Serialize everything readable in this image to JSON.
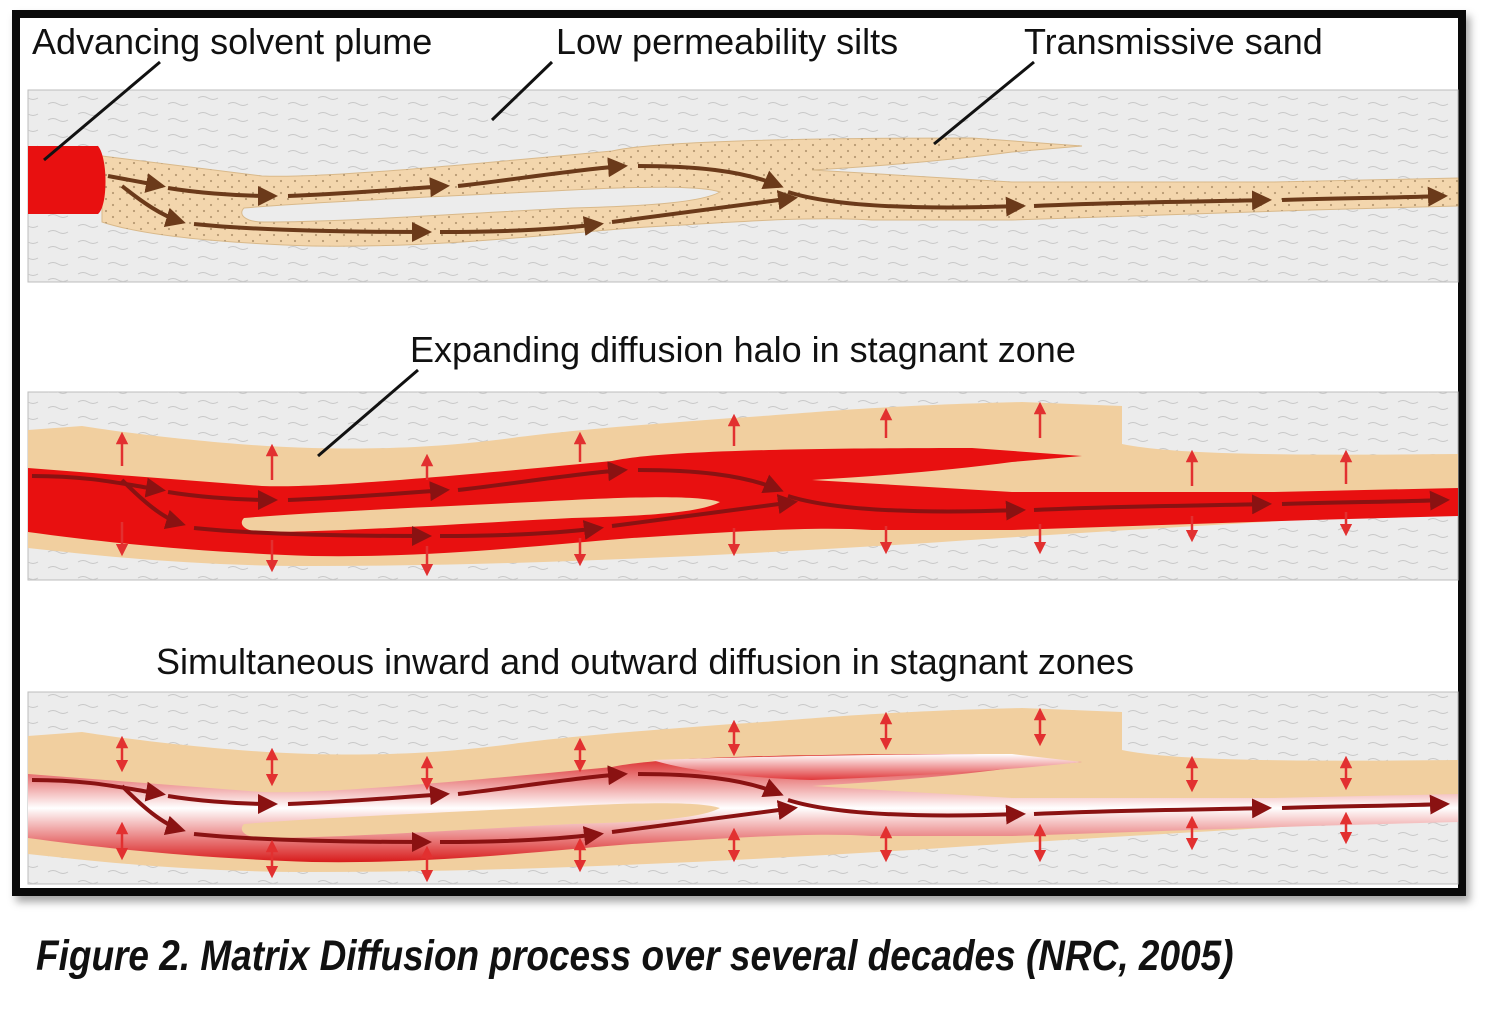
{
  "panels": {
    "top": {
      "labels": {
        "plume": "Advancing solvent plume",
        "silts": "Low permeability silts",
        "sand": "Transmissive sand"
      }
    },
    "middle": {
      "labels": {
        "halo": "Expanding diffusion halo in stagnant zone"
      }
    },
    "bottom": {
      "labels": {
        "title": "Simultaneous inward and outward diffusion in stagnant zones"
      }
    }
  },
  "caption": "Figure 2.  Matrix Diffusion process over several decades (NRC, 2005)",
  "colors": {
    "frame": "#0a0a0a",
    "silt": "#ececec",
    "sand": "#f1cf9f",
    "plume": "#e81010",
    "top_arrow": "#6b3a1a",
    "flow_arrow": "#8a1212",
    "diffusion_arrow": "#e23030"
  }
}
